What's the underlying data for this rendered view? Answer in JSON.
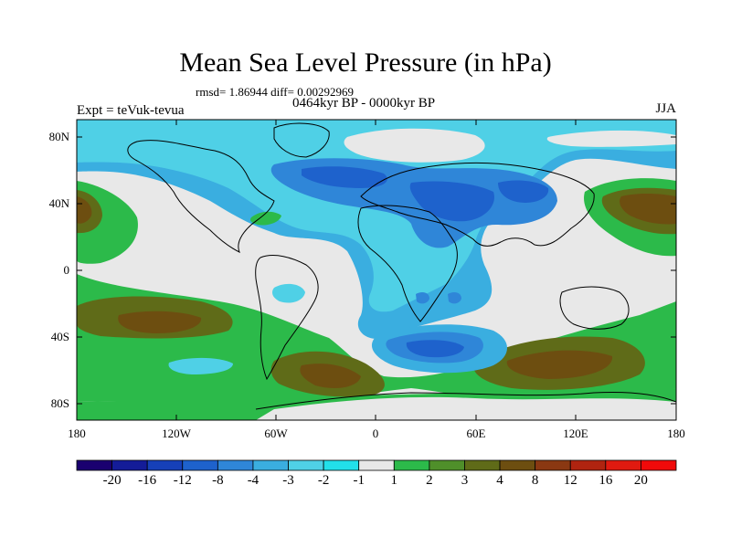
{
  "title": "Mean Sea Level Pressure (in hPa)",
  "stats_line": "rmsd= 1.86944 diff= 0.00292969",
  "period_line": "0464kyr BP - 0000kyr BP",
  "experiment_line": "Expt = teVuk-tevua",
  "season": "JJA",
  "x_ticks": [
    "180",
    "120W",
    "60W",
    "0",
    "60E",
    "120E",
    "180"
  ],
  "y_ticks": [
    "80N",
    "40N",
    "0",
    "40S",
    "80S"
  ],
  "colorbar": {
    "labels": [
      "-20",
      "-16",
      "-12",
      "-8",
      "-4",
      "-3",
      "-2",
      "-1",
      "1",
      "2",
      "3",
      "4",
      "8",
      "12",
      "16",
      "20"
    ],
    "colors": [
      "#1a0070",
      "#141c98",
      "#1640b8",
      "#1e62cc",
      "#2f86d8",
      "#3aaee0",
      "#4fd0e6",
      "#22e0ea",
      "#e8e8e8",
      "#2cba4a",
      "#4f8f2a",
      "#5f6b18",
      "#6d4e10",
      "#8a3812",
      "#b02410",
      "#e01a10",
      "#f00a0a"
    ]
  },
  "map_layers": {
    "background_color": "#e8e8e8",
    "colors": {
      "green": "#2cba4a",
      "olive": "#5f6b18",
      "brown": "#6d4e10",
      "light_cyan": "#4fd0e6",
      "cyan": "#3aaee0",
      "blue": "#2f86d8",
      "dark_blue": "#1e62cc",
      "land_outline": "#000000"
    }
  }
}
